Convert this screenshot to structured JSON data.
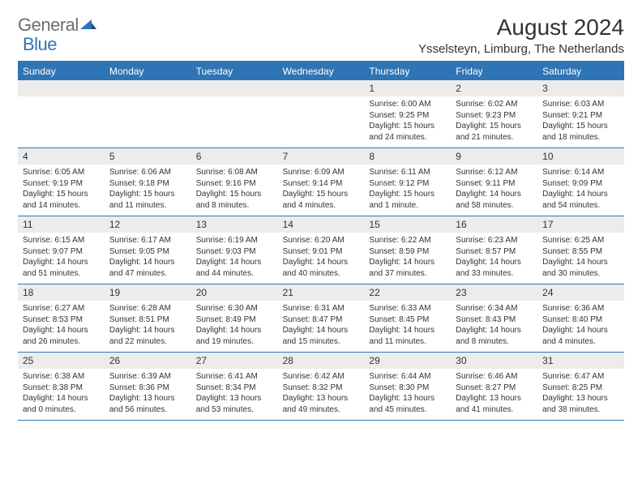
{
  "logo": {
    "general": "General",
    "blue": "Blue"
  },
  "title": "August 2024",
  "subtitle": "Ysselsteyn, Limburg, The Netherlands",
  "colors": {
    "accent": "#2f74b5",
    "header_bg": "#2f74b5",
    "header_text": "#ffffff",
    "daynum_bg": "#ececec",
    "text": "#333333",
    "logo_gray": "#6e6e6e"
  },
  "days_of_week": [
    "Sunday",
    "Monday",
    "Tuesday",
    "Wednesday",
    "Thursday",
    "Friday",
    "Saturday"
  ],
  "weeks": [
    {
      "nums": [
        "",
        "",
        "",
        "",
        "1",
        "2",
        "3"
      ],
      "details": [
        null,
        null,
        null,
        null,
        {
          "sunrise": "Sunrise: 6:00 AM",
          "sunset": "Sunset: 9:25 PM",
          "daylight": "Daylight: 15 hours and 24 minutes."
        },
        {
          "sunrise": "Sunrise: 6:02 AM",
          "sunset": "Sunset: 9:23 PM",
          "daylight": "Daylight: 15 hours and 21 minutes."
        },
        {
          "sunrise": "Sunrise: 6:03 AM",
          "sunset": "Sunset: 9:21 PM",
          "daylight": "Daylight: 15 hours and 18 minutes."
        }
      ]
    },
    {
      "nums": [
        "4",
        "5",
        "6",
        "7",
        "8",
        "9",
        "10"
      ],
      "details": [
        {
          "sunrise": "Sunrise: 6:05 AM",
          "sunset": "Sunset: 9:19 PM",
          "daylight": "Daylight: 15 hours and 14 minutes."
        },
        {
          "sunrise": "Sunrise: 6:06 AM",
          "sunset": "Sunset: 9:18 PM",
          "daylight": "Daylight: 15 hours and 11 minutes."
        },
        {
          "sunrise": "Sunrise: 6:08 AM",
          "sunset": "Sunset: 9:16 PM",
          "daylight": "Daylight: 15 hours and 8 minutes."
        },
        {
          "sunrise": "Sunrise: 6:09 AM",
          "sunset": "Sunset: 9:14 PM",
          "daylight": "Daylight: 15 hours and 4 minutes."
        },
        {
          "sunrise": "Sunrise: 6:11 AM",
          "sunset": "Sunset: 9:12 PM",
          "daylight": "Daylight: 15 hours and 1 minute."
        },
        {
          "sunrise": "Sunrise: 6:12 AM",
          "sunset": "Sunset: 9:11 PM",
          "daylight": "Daylight: 14 hours and 58 minutes."
        },
        {
          "sunrise": "Sunrise: 6:14 AM",
          "sunset": "Sunset: 9:09 PM",
          "daylight": "Daylight: 14 hours and 54 minutes."
        }
      ]
    },
    {
      "nums": [
        "11",
        "12",
        "13",
        "14",
        "15",
        "16",
        "17"
      ],
      "details": [
        {
          "sunrise": "Sunrise: 6:15 AM",
          "sunset": "Sunset: 9:07 PM",
          "daylight": "Daylight: 14 hours and 51 minutes."
        },
        {
          "sunrise": "Sunrise: 6:17 AM",
          "sunset": "Sunset: 9:05 PM",
          "daylight": "Daylight: 14 hours and 47 minutes."
        },
        {
          "sunrise": "Sunrise: 6:19 AM",
          "sunset": "Sunset: 9:03 PM",
          "daylight": "Daylight: 14 hours and 44 minutes."
        },
        {
          "sunrise": "Sunrise: 6:20 AM",
          "sunset": "Sunset: 9:01 PM",
          "daylight": "Daylight: 14 hours and 40 minutes."
        },
        {
          "sunrise": "Sunrise: 6:22 AM",
          "sunset": "Sunset: 8:59 PM",
          "daylight": "Daylight: 14 hours and 37 minutes."
        },
        {
          "sunrise": "Sunrise: 6:23 AM",
          "sunset": "Sunset: 8:57 PM",
          "daylight": "Daylight: 14 hours and 33 minutes."
        },
        {
          "sunrise": "Sunrise: 6:25 AM",
          "sunset": "Sunset: 8:55 PM",
          "daylight": "Daylight: 14 hours and 30 minutes."
        }
      ]
    },
    {
      "nums": [
        "18",
        "19",
        "20",
        "21",
        "22",
        "23",
        "24"
      ],
      "details": [
        {
          "sunrise": "Sunrise: 6:27 AM",
          "sunset": "Sunset: 8:53 PM",
          "daylight": "Daylight: 14 hours and 26 minutes."
        },
        {
          "sunrise": "Sunrise: 6:28 AM",
          "sunset": "Sunset: 8:51 PM",
          "daylight": "Daylight: 14 hours and 22 minutes."
        },
        {
          "sunrise": "Sunrise: 6:30 AM",
          "sunset": "Sunset: 8:49 PM",
          "daylight": "Daylight: 14 hours and 19 minutes."
        },
        {
          "sunrise": "Sunrise: 6:31 AM",
          "sunset": "Sunset: 8:47 PM",
          "daylight": "Daylight: 14 hours and 15 minutes."
        },
        {
          "sunrise": "Sunrise: 6:33 AM",
          "sunset": "Sunset: 8:45 PM",
          "daylight": "Daylight: 14 hours and 11 minutes."
        },
        {
          "sunrise": "Sunrise: 6:34 AM",
          "sunset": "Sunset: 8:43 PM",
          "daylight": "Daylight: 14 hours and 8 minutes."
        },
        {
          "sunrise": "Sunrise: 6:36 AM",
          "sunset": "Sunset: 8:40 PM",
          "daylight": "Daylight: 14 hours and 4 minutes."
        }
      ]
    },
    {
      "nums": [
        "25",
        "26",
        "27",
        "28",
        "29",
        "30",
        "31"
      ],
      "details": [
        {
          "sunrise": "Sunrise: 6:38 AM",
          "sunset": "Sunset: 8:38 PM",
          "daylight": "Daylight: 14 hours and 0 minutes."
        },
        {
          "sunrise": "Sunrise: 6:39 AM",
          "sunset": "Sunset: 8:36 PM",
          "daylight": "Daylight: 13 hours and 56 minutes."
        },
        {
          "sunrise": "Sunrise: 6:41 AM",
          "sunset": "Sunset: 8:34 PM",
          "daylight": "Daylight: 13 hours and 53 minutes."
        },
        {
          "sunrise": "Sunrise: 6:42 AM",
          "sunset": "Sunset: 8:32 PM",
          "daylight": "Daylight: 13 hours and 49 minutes."
        },
        {
          "sunrise": "Sunrise: 6:44 AM",
          "sunset": "Sunset: 8:30 PM",
          "daylight": "Daylight: 13 hours and 45 minutes."
        },
        {
          "sunrise": "Sunrise: 6:46 AM",
          "sunset": "Sunset: 8:27 PM",
          "daylight": "Daylight: 13 hours and 41 minutes."
        },
        {
          "sunrise": "Sunrise: 6:47 AM",
          "sunset": "Sunset: 8:25 PM",
          "daylight": "Daylight: 13 hours and 38 minutes."
        }
      ]
    }
  ]
}
